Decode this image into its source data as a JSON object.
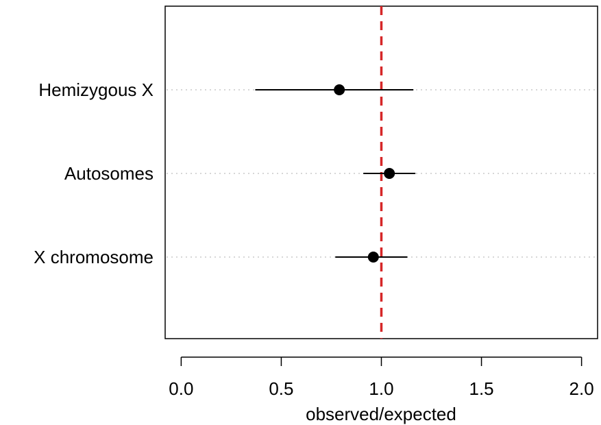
{
  "chart_data": {
    "type": "scatter",
    "title": "",
    "xlabel": "observed/expected",
    "ylabel": "",
    "xlim": [
      -0.08,
      2.08
    ],
    "x_ticks": [
      0.0,
      0.5,
      1.0,
      1.5,
      2.0
    ],
    "x_tick_labels": [
      "0.0",
      "0.5",
      "1.0",
      "1.5",
      "2.0"
    ],
    "categories": [
      "Hemizygous X",
      "Autosomes",
      "X chromosome"
    ],
    "points": [
      {
        "label": "Hemizygous X",
        "estimate": 0.79,
        "lower": 0.37,
        "upper": 1.16
      },
      {
        "label": "Autosomes",
        "estimate": 1.04,
        "lower": 0.91,
        "upper": 1.17
      },
      {
        "label": "X chromosome",
        "estimate": 0.96,
        "lower": 0.77,
        "upper": 1.13
      }
    ],
    "reference_line": {
      "x": 1.0,
      "color": "#d62728",
      "style": "dashed"
    },
    "guide_lines": {
      "color": "#c8c8c8",
      "style": "dotted"
    },
    "point_color": "#000000",
    "grid": false,
    "legend": "none"
  }
}
